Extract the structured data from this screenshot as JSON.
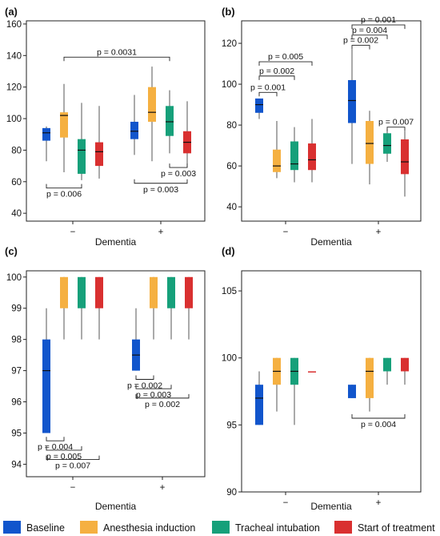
{
  "colors": {
    "Baseline": "#1155cc",
    "Anesthesia induction": "#f5b041",
    "Tracheal intubation": "#16a07a",
    "Start of treatment": "#d93030",
    "whisker": "#555555",
    "axis": "#222222"
  },
  "legend": {
    "items": [
      "Baseline",
      "Anesthesia induction",
      "Tracheal intubation",
      "Start of treatment"
    ]
  },
  "chart_data": [
    {
      "type": "box",
      "panel": "(a)",
      "xlabel": "Dementia",
      "ylabel": "",
      "categories": [
        "−",
        "+"
      ],
      "ylim": [
        35,
        162
      ],
      "yticks": [
        40,
        60,
        80,
        100,
        120,
        140,
        160
      ],
      "series": [
        {
          "name": "Baseline",
          "boxes": [
            {
              "min": 73,
              "q1": 86,
              "median": 91,
              "q3": 94,
              "max": 95
            },
            {
              "min": 77,
              "q1": 87,
              "median": 92,
              "q3": 98,
              "max": 115
            }
          ]
        },
        {
          "name": "Anesthesia induction",
          "boxes": [
            {
              "min": 66,
              "q1": 88,
              "median": 102,
              "q3": 104,
              "max": 122
            },
            {
              "min": 73,
              "q1": 98,
              "median": 104,
              "q3": 120,
              "max": 133
            }
          ]
        },
        {
          "name": "Tracheal intubation",
          "boxes": [
            {
              "min": 61,
              "q1": 65,
              "median": 80,
              "q3": 87,
              "max": 110
            },
            {
              "min": 78,
              "q1": 89,
              "median": 98,
              "q3": 108,
              "max": 118
            }
          ]
        },
        {
          "name": "Start of treatment",
          "boxes": [
            {
              "min": 62,
              "q1": 70,
              "median": 79,
              "q3": 85,
              "max": 108
            },
            {
              "min": 69,
              "q1": 78,
              "median": 85,
              "q3": 92,
              "max": 111
            }
          ]
        }
      ],
      "annotations": [
        {
          "text": "p = 0.0031",
          "from": [
            0,
            1
          ],
          "to": [
            1,
            2
          ],
          "y": 139,
          "dir": "down"
        },
        {
          "text": "p = 0.006",
          "from": [
            0,
            0
          ],
          "to": [
            0,
            2
          ],
          "y": 56,
          "dir": "up"
        },
        {
          "text": "p = 0.003",
          "from": [
            1,
            2
          ],
          "to": [
            1,
            3
          ],
          "y": 69,
          "dir": "up"
        },
        {
          "text": "p = 0.003",
          "from": [
            1,
            0
          ],
          "to": [
            1,
            3
          ],
          "y": 59,
          "dir": "up"
        }
      ]
    },
    {
      "type": "box",
      "panel": "(b)",
      "xlabel": "Dementia",
      "ylabel": "",
      "categories": [
        "−",
        "+"
      ],
      "ylim": [
        33,
        131
      ],
      "yticks": [
        40,
        60,
        80,
        100,
        120
      ],
      "series": [
        {
          "name": "Baseline",
          "boxes": [
            {
              "min": 83,
              "q1": 86,
              "median": 90,
              "q3": 93,
              "max": 93
            },
            {
              "min": 61,
              "q1": 81,
              "median": 92,
              "q3": 102,
              "max": 117
            }
          ]
        },
        {
          "name": "Anesthesia induction",
          "boxes": [
            {
              "min": 54,
              "q1": 57,
              "median": 60,
              "q3": 68,
              "max": 82
            },
            {
              "min": 51,
              "q1": 61,
              "median": 71,
              "q3": 82,
              "max": 87
            }
          ]
        },
        {
          "name": "Tracheal intubation",
          "boxes": [
            {
              "min": 52,
              "q1": 58,
              "median": 61,
              "q3": 72,
              "max": 79
            },
            {
              "min": 62,
              "q1": 66,
              "median": 70,
              "q3": 76,
              "max": 78
            }
          ]
        },
        {
          "name": "Start of treatment",
          "boxes": [
            {
              "min": 52,
              "q1": 58,
              "median": 63,
              "q3": 71,
              "max": 83
            },
            {
              "min": 45,
              "q1": 56,
              "median": 62,
              "q3": 73,
              "max": 77
            }
          ]
        }
      ],
      "annotations": [
        {
          "text": "p = 0.001",
          "from": [
            0,
            0
          ],
          "to": [
            0,
            1
          ],
          "y": 96,
          "dir": "down"
        },
        {
          "text": "p = 0.002",
          "from": [
            0,
            0
          ],
          "to": [
            0,
            2
          ],
          "y": 104,
          "dir": "down"
        },
        {
          "text": "p = 0.005",
          "from": [
            0,
            0
          ],
          "to": [
            0,
            3
          ],
          "y": 111,
          "dir": "down"
        },
        {
          "text": "p = 0.002",
          "from": [
            1,
            0
          ],
          "to": [
            1,
            1
          ],
          "y": 119,
          "dir": "down"
        },
        {
          "text": "p = 0.004",
          "from": [
            1,
            0
          ],
          "to": [
            1,
            2
          ],
          "y": 124,
          "dir": "down"
        },
        {
          "text": "p = 0.001",
          "from": [
            1,
            0
          ],
          "to": [
            1,
            3
          ],
          "y": 129,
          "dir": "down"
        },
        {
          "text": "p = 0.007",
          "from": [
            1,
            2
          ],
          "to": [
            1,
            3
          ],
          "y": 79,
          "dir": "down"
        }
      ]
    },
    {
      "type": "box",
      "panel": "(c)",
      "xlabel": "Dementia",
      "ylabel": "",
      "categories": [
        "−",
        "+"
      ],
      "ylim": [
        93.6,
        100.2
      ],
      "yticks": [
        94,
        95,
        96,
        97,
        98,
        99,
        100
      ],
      "series": [
        {
          "name": "Baseline",
          "boxes": [
            {
              "min": 95,
              "q1": 95,
              "median": 97,
              "q3": 98,
              "max": 99
            },
            {
              "min": 97,
              "q1": 97,
              "median": 97.5,
              "q3": 98,
              "max": 99
            }
          ]
        },
        {
          "name": "Anesthesia induction",
          "boxes": [
            {
              "min": 98,
              "q1": 99,
              "median": 99,
              "q3": 100,
              "max": 100
            },
            {
              "min": 98,
              "q1": 99,
              "median": 99,
              "q3": 100,
              "max": 100
            }
          ]
        },
        {
          "name": "Tracheal intubation",
          "boxes": [
            {
              "min": 98,
              "q1": 99,
              "median": 99,
              "q3": 100,
              "max": 100
            },
            {
              "min": 98,
              "q1": 99,
              "median": 99,
              "q3": 100,
              "max": 100
            }
          ]
        },
        {
          "name": "Start of treatment",
          "boxes": [
            {
              "min": 98,
              "q1": 99,
              "median": 99,
              "q3": 100,
              "max": 100
            },
            {
              "min": 98,
              "q1": 99,
              "median": 99,
              "q3": 100,
              "max": 100
            }
          ]
        }
      ],
      "annotations": [
        {
          "text": "p = 0.004",
          "from": [
            0,
            0
          ],
          "to": [
            0,
            1
          ],
          "y": 94.75,
          "dir": "up"
        },
        {
          "text": "p = 0.005",
          "from": [
            0,
            0
          ],
          "to": [
            0,
            2
          ],
          "y": 94.45,
          "dir": "up"
        },
        {
          "text": "p = 0.007",
          "from": [
            0,
            0
          ],
          "to": [
            0,
            3
          ],
          "y": 94.15,
          "dir": "up"
        },
        {
          "text": "p = 0.002",
          "from": [
            1,
            0
          ],
          "to": [
            1,
            1
          ],
          "y": 96.72,
          "dir": "up"
        },
        {
          "text": "p = 0.003",
          "from": [
            1,
            0
          ],
          "to": [
            1,
            2
          ],
          "y": 96.42,
          "dir": "up"
        },
        {
          "text": "p = 0.002",
          "from": [
            1,
            0
          ],
          "to": [
            1,
            3
          ],
          "y": 96.12,
          "dir": "up"
        }
      ]
    },
    {
      "type": "box",
      "panel": "(d)",
      "xlabel": "Dementia",
      "ylabel": "",
      "categories": [
        "−",
        "+"
      ],
      "ylim": [
        90,
        106.5
      ],
      "yticks": [
        90,
        95,
        100,
        105
      ],
      "series": [
        {
          "name": "Baseline",
          "boxes": [
            {
              "min": 95,
              "q1": 95,
              "median": 97,
              "q3": 98,
              "max": 99
            },
            {
              "min": 97,
              "q1": 97,
              "median": 97,
              "q3": 98,
              "max": 98
            }
          ]
        },
        {
          "name": "Anesthesia induction",
          "boxes": [
            {
              "min": 96,
              "q1": 98,
              "median": 99,
              "q3": 100,
              "max": 100
            },
            {
              "min": 96,
              "q1": 97,
              "median": 99,
              "q3": 100,
              "max": 100
            }
          ]
        },
        {
          "name": "Tracheal intubation",
          "boxes": [
            {
              "min": 95,
              "q1": 98,
              "median": 99,
              "q3": 100,
              "max": 100
            },
            {
              "min": 98,
              "q1": 99,
              "median": 99,
              "q3": 100,
              "max": 100
            }
          ]
        },
        {
          "name": "Start of treatment",
          "boxes": [
            {
              "min": 99,
              "q1": 99,
              "median": 99,
              "q3": 99,
              "max": 99
            },
            {
              "min": 98,
              "q1": 99,
              "median": 99,
              "q3": 100,
              "max": 100
            }
          ]
        }
      ],
      "annotations": [
        {
          "text": "p = 0.004",
          "from": [
            1,
            0
          ],
          "to": [
            1,
            3
          ],
          "y": 95.5,
          "dir": "up"
        }
      ]
    }
  ]
}
